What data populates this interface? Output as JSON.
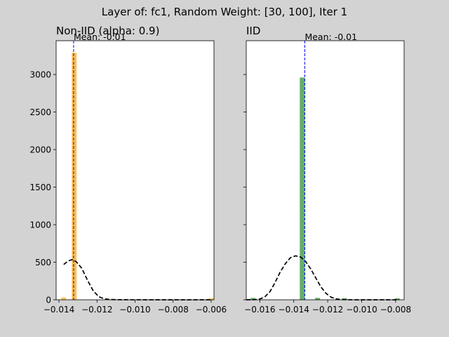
{
  "figure": {
    "suptitle": "Layer of: fc1, Random Weight: [30, 100], Iter 1",
    "background": "#d3d3d3"
  },
  "chart_data": [
    {
      "type": "bar",
      "title": "Non-IID (alpha: 0.9)",
      "bar_color": "#ffa500",
      "xlim": [
        -0.01415,
        -0.00585
      ],
      "ylim": [
        0,
        3450
      ],
      "xticks": [
        -0.014,
        -0.012,
        -0.01,
        -0.008,
        -0.006
      ],
      "xtick_labels": [
        "−0.014",
        "−0.012",
        "−0.010",
        "−0.008",
        "−0.006"
      ],
      "yticks": [
        0,
        500,
        1000,
        1500,
        2000,
        2500,
        3000
      ],
      "ytick_labels": [
        "0",
        "500",
        "1000",
        "1500",
        "2000",
        "2500",
        "3000"
      ],
      "bin_width": 0.00025,
      "bars": [
        {
          "x": -0.01375,
          "value": 30
        },
        {
          "x": -0.0132,
          "value": 3290
        },
        {
          "x": -0.0112,
          "value": 10
        },
        {
          "x": -0.006,
          "value": 20
        }
      ],
      "mean_value": -0.01323,
      "mean_label": "Mean: -0.01",
      "density_curve": [
        [
          -0.01375,
          470
        ],
        [
          -0.0135,
          520
        ],
        [
          -0.0133,
          535
        ],
        [
          -0.0131,
          510
        ],
        [
          -0.0128,
          420
        ],
        [
          -0.0125,
          260
        ],
        [
          -0.0122,
          120
        ],
        [
          -0.0119,
          40
        ],
        [
          -0.0116,
          12
        ],
        [
          -0.0113,
          4
        ],
        [
          -0.011,
          2
        ],
        [
          -0.0105,
          1
        ],
        [
          -0.0095,
          0
        ],
        [
          -0.0085,
          0
        ],
        [
          -0.0075,
          0
        ],
        [
          -0.0065,
          0
        ],
        [
          -0.006,
          0
        ]
      ],
      "legend": "none",
      "grid": false
    },
    {
      "type": "bar",
      "title": "IID",
      "bar_color": "#228b22",
      "xlim": [
        -0.0168,
        -0.0075
      ],
      "ylim": [
        0,
        3450
      ],
      "xticks": [
        -0.016,
        -0.014,
        -0.012,
        -0.01,
        -0.008
      ],
      "xtick_labels": [
        "−0.016",
        "−0.014",
        "−0.012",
        "−0.010",
        "−0.008"
      ],
      "yticks": [
        0,
        500,
        1000,
        1500,
        2000,
        2500,
        3000
      ],
      "ytick_labels": [],
      "bin_width": 0.00029,
      "bars": [
        {
          "x": -0.0164,
          "value": 25
        },
        {
          "x": -0.0135,
          "value": 2960
        },
        {
          "x": -0.0126,
          "value": 25
        },
        {
          "x": -0.011,
          "value": 20
        },
        {
          "x": -0.0079,
          "value": 20
        }
      ],
      "mean_value": -0.01335,
      "mean_label": "Mean: -0.01",
      "density_curve": [
        [
          -0.0168,
          0
        ],
        [
          -0.0163,
          2
        ],
        [
          -0.016,
          10
        ],
        [
          -0.0157,
          40
        ],
        [
          -0.0154,
          110
        ],
        [
          -0.0151,
          230
        ],
        [
          -0.0148,
          370
        ],
        [
          -0.0145,
          480
        ],
        [
          -0.0142,
          560
        ],
        [
          -0.0139,
          585
        ],
        [
          -0.0136,
          570
        ],
        [
          -0.0133,
          510
        ],
        [
          -0.013,
          410
        ],
        [
          -0.0127,
          290
        ],
        [
          -0.0124,
          170
        ],
        [
          -0.0121,
          85
        ],
        [
          -0.0118,
          35
        ],
        [
          -0.0115,
          12
        ],
        [
          -0.0112,
          4
        ],
        [
          -0.0108,
          1
        ],
        [
          -0.0102,
          0
        ],
        [
          -0.0095,
          0
        ],
        [
          -0.0085,
          0
        ],
        [
          -0.0078,
          0
        ]
      ],
      "legend": "none",
      "grid": false
    }
  ]
}
